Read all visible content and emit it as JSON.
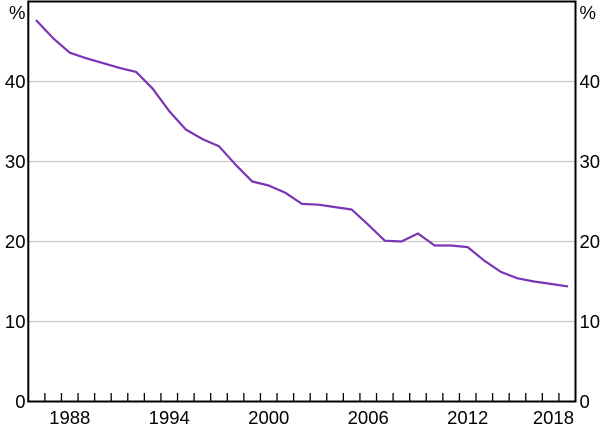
{
  "chart_data": {
    "type": "line",
    "title": "",
    "legend": "none",
    "grid": "horizontal-only",
    "x_axis": {
      "lim_years": [
        1986,
        2019
      ],
      "tick_step_years": 1,
      "tick_first_year": 1987,
      "tick_last_year": 2018,
      "labeled_years": [
        "1988",
        "1994",
        "2000",
        "2006",
        "2012",
        "2018"
      ],
      "points_plotted_at_mid_year": true
    },
    "y_axis": {
      "lim": [
        0,
        50
      ],
      "ticks": [
        "0",
        "10",
        "20",
        "30",
        "40"
      ],
      "gridlines": [
        10,
        20,
        30,
        40
      ],
      "unit_label_left": "%",
      "unit_label_right": "%"
    },
    "series": [
      {
        "name": "main-line",
        "color": "#7B34B4",
        "x_years": [
          1986,
          1987,
          1988,
          1989,
          1990,
          1991,
          1992,
          1993,
          1994,
          1995,
          1996,
          1997,
          1998,
          1999,
          2000,
          2001,
          2002,
          2003,
          2004,
          2005,
          2006,
          2007,
          2008,
          2009,
          2010,
          2011,
          2012,
          2013,
          2014,
          2015,
          2016,
          2017,
          2018
        ],
        "values": [
          47.6,
          45.4,
          43.6,
          42.9,
          42.3,
          41.7,
          41.2,
          39.1,
          36.3,
          34.0,
          32.8,
          31.9,
          29.6,
          27.5,
          27.0,
          26.1,
          24.7,
          24.6,
          24.3,
          24.0,
          22.1,
          20.1,
          20.0,
          21.0,
          19.5,
          19.5,
          19.3,
          17.6,
          16.2,
          15.4,
          15.0,
          14.7,
          14.4
        ]
      }
    ],
    "colors": {
      "grid": "#C6C6C6",
      "axis_frame": "#000000",
      "text": "#000000",
      "background": "#FFFFFF"
    }
  }
}
